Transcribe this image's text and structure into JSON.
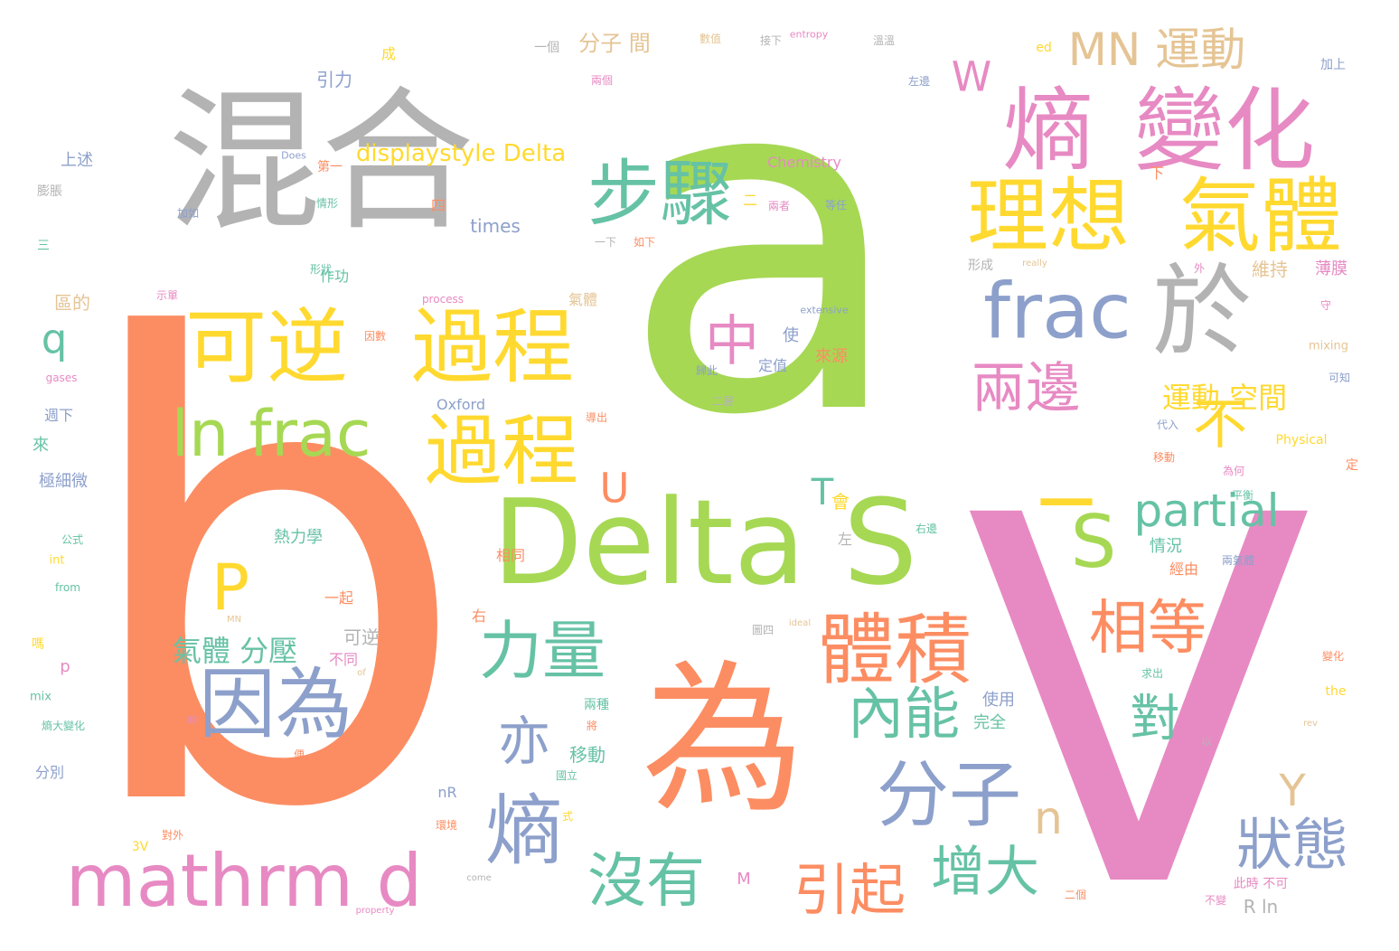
{
  "palette": {
    "green": "#a6d854",
    "orange": "#fc8d62",
    "pink": "#e78ac3",
    "gray": "#b3b3b3",
    "yellow": "#ffd92f",
    "blue": "#8da0cb",
    "teal": "#66c2a5",
    "tan": "#e5c494"
  },
  "words": [
    {
      "text": "a",
      "color": "green"
    },
    {
      "text": "b",
      "color": "orange"
    },
    {
      "text": "V",
      "color": "pink"
    },
    {
      "text": "混合",
      "color": "gray"
    },
    {
      "text": "為",
      "color": "orange"
    },
    {
      "text": "Delta S",
      "color": "green"
    },
    {
      "text": "熵",
      "color": "pink"
    },
    {
      "text": "變化",
      "color": "pink"
    },
    {
      "text": "理想",
      "color": "yellow"
    },
    {
      "text": "氣體",
      "color": "yellow"
    },
    {
      "text": "於",
      "color": "gray"
    },
    {
      "text": "frac",
      "color": "blue"
    },
    {
      "text": "可逆",
      "color": "yellow"
    },
    {
      "text": "過程",
      "color": "yellow"
    },
    {
      "text": "過程",
      "color": "yellow"
    },
    {
      "text": "步驟",
      "color": "teal"
    },
    {
      "text": "ln frac",
      "color": "green"
    },
    {
      "text": "mathrm d",
      "color": "pink"
    },
    {
      "text": "因為",
      "color": "blue"
    },
    {
      "text": "熵",
      "color": "blue"
    },
    {
      "text": "分子",
      "color": "blue"
    },
    {
      "text": "體積",
      "color": "orange"
    },
    {
      "text": "力量",
      "color": "teal"
    },
    {
      "text": "S",
      "color": "green"
    },
    {
      "text": "MN 運動",
      "color": "tan"
    },
    {
      "text": "兩邊",
      "color": "pink"
    },
    {
      "text": "_",
      "color": "yellow"
    },
    {
      "text": "不",
      "color": "yellow"
    },
    {
      "text": "partial",
      "color": "teal"
    },
    {
      "text": "相等",
      "color": "orange"
    },
    {
      "text": "內能",
      "color": "teal"
    },
    {
      "text": "沒有",
      "color": "teal"
    },
    {
      "text": "增大",
      "color": "teal"
    },
    {
      "text": "引起",
      "color": "orange"
    },
    {
      "text": "狀態",
      "color": "blue"
    },
    {
      "text": "對",
      "color": "teal"
    },
    {
      "text": "亦",
      "color": "blue"
    },
    {
      "text": "P",
      "color": "yellow"
    },
    {
      "text": "中",
      "color": "pink"
    },
    {
      "text": "q",
      "color": "teal"
    },
    {
      "text": "W",
      "color": "pink"
    },
    {
      "text": "U",
      "color": "orange"
    },
    {
      "text": "T",
      "color": "teal"
    },
    {
      "text": "n",
      "color": "tan"
    },
    {
      "text": "Y",
      "color": "tan"
    },
    {
      "text": "氣體 分壓",
      "color": "teal"
    },
    {
      "text": "運動 空間",
      "color": "yellow"
    },
    {
      "text": "displaystyle Delta",
      "color": "yellow"
    },
    {
      "text": "times",
      "color": "blue"
    },
    {
      "text": "分子 間",
      "color": "tan"
    },
    {
      "text": "Chemistry",
      "color": "pink"
    },
    {
      "text": "引力",
      "color": "blue"
    },
    {
      "text": "上述",
      "color": "blue"
    },
    {
      "text": "膨脹",
      "color": "gray"
    },
    {
      "text": "情況",
      "color": "teal"
    },
    {
      "text": "維持",
      "color": "tan"
    },
    {
      "text": "薄膜",
      "color": "pink"
    },
    {
      "text": "移動",
      "color": "teal"
    },
    {
      "text": "熱力學",
      "color": "teal"
    },
    {
      "text": "可逆",
      "color": "gray"
    },
    {
      "text": "一起",
      "color": "orange"
    },
    {
      "text": "R ln",
      "color": "gray"
    },
    {
      "text": "使用",
      "color": "blue"
    },
    {
      "text": "完全",
      "color": "teal"
    },
    {
      "text": "來源",
      "color": "orange"
    },
    {
      "text": "定值",
      "color": "blue"
    },
    {
      "text": "使",
      "color": "blue"
    },
    {
      "text": "氣體",
      "color": "tan"
    },
    {
      "text": "區的",
      "color": "tan"
    },
    {
      "text": "作功",
      "color": "teal"
    },
    {
      "text": "極細微",
      "color": "blue"
    },
    {
      "text": "來",
      "color": "teal"
    },
    {
      "text": "分別",
      "color": "blue"
    },
    {
      "text": "熵大變化",
      "color": "teal"
    },
    {
      "text": "Oxford",
      "color": "blue"
    },
    {
      "text": "形成",
      "color": "gray"
    },
    {
      "text": "mixing",
      "color": "tan"
    },
    {
      "text": "Physical",
      "color": "yellow"
    },
    {
      "text": "相同",
      "color": "orange"
    },
    {
      "text": "經由",
      "color": "orange"
    },
    {
      "text": "兩氣體",
      "color": "blue"
    },
    {
      "text": "不同",
      "color": "pink"
    },
    {
      "text": "兩種",
      "color": "teal"
    },
    {
      "text": "nR",
      "color": "blue"
    },
    {
      "text": "M",
      "color": "pink"
    },
    {
      "text": "3V",
      "color": "yellow"
    },
    {
      "text": "mix",
      "color": "teal"
    },
    {
      "text": "p",
      "color": "pink"
    },
    {
      "text": "the",
      "color": "yellow"
    },
    {
      "text": "int",
      "color": "yellow"
    },
    {
      "text": "from",
      "color": "teal"
    },
    {
      "text": "公式",
      "color": "teal"
    },
    {
      "text": "gases",
      "color": "pink"
    },
    {
      "text": "extensive",
      "color": "blue"
    },
    {
      "text": "process",
      "color": "pink"
    },
    {
      "text": "entropy",
      "color": "pink"
    },
    {
      "text": "Does",
      "color": "blue"
    },
    {
      "text": "ed",
      "color": "yellow"
    },
    {
      "text": "really",
      "color": "tan"
    },
    {
      "text": "ideal",
      "color": "tan"
    },
    {
      "text": "come",
      "color": "gray"
    },
    {
      "text": "property",
      "color": "pink"
    },
    {
      "text": "of",
      "color": "tan"
    },
    {
      "text": "rev",
      "color": "tan"
    },
    {
      "text": "MN",
      "color": "tan"
    },
    {
      "text": "一個",
      "color": "gray"
    },
    {
      "text": "成",
      "color": "yellow"
    },
    {
      "text": "第一",
      "color": "orange"
    },
    {
      "text": "四",
      "color": "orange"
    },
    {
      "text": "二",
      "color": "yellow"
    },
    {
      "text": "下",
      "color": "orange"
    },
    {
      "text": "加上",
      "color": "blue"
    },
    {
      "text": "左",
      "color": "gray"
    },
    {
      "text": "右",
      "color": "orange"
    },
    {
      "text": "週下",
      "color": "blue"
    },
    {
      "text": "三",
      "color": "teal"
    },
    {
      "text": "可知",
      "color": "blue"
    },
    {
      "text": "代入",
      "color": "blue"
    },
    {
      "text": "平衡",
      "color": "teal"
    },
    {
      "text": "不變",
      "color": "pink"
    },
    {
      "text": "此時 不可",
      "color": "pink"
    },
    {
      "text": "變化",
      "color": "orange"
    },
    {
      "text": "求出",
      "color": "teal"
    },
    {
      "text": "二個",
      "color": "orange"
    },
    {
      "text": "為何",
      "color": "pink"
    },
    {
      "text": "移動",
      "color": "orange"
    },
    {
      "text": "圖四",
      "color": "gray"
    },
    {
      "text": "環境",
      "color": "orange"
    },
    {
      "text": "國立",
      "color": "teal"
    },
    {
      "text": "對外",
      "color": "orange"
    },
    {
      "text": "因數",
      "color": "orange"
    },
    {
      "text": "情形",
      "color": "teal"
    },
    {
      "text": "加如",
      "color": "blue"
    },
    {
      "text": "一下",
      "color": "gray"
    },
    {
      "text": "如下",
      "color": "orange"
    },
    {
      "text": "等任",
      "color": "blue"
    },
    {
      "text": "兩者",
      "color": "pink"
    },
    {
      "text": "數值",
      "color": "tan"
    },
    {
      "text": "接下",
      "color": "gray"
    },
    {
      "text": "溫溫",
      "color": "gray"
    },
    {
      "text": "兩個",
      "color": "pink"
    },
    {
      "text": "左邊",
      "color": "blue"
    },
    {
      "text": "右邊",
      "color": "teal"
    },
    {
      "text": "形狀",
      "color": "teal"
    },
    {
      "text": "定",
      "color": "orange"
    },
    {
      "text": "守",
      "color": "pink"
    },
    {
      "text": "外",
      "color": "pink"
    },
    {
      "text": "將",
      "color": "orange"
    },
    {
      "text": "會",
      "color": "yellow"
    },
    {
      "text": "二層",
      "color": "gray"
    },
    {
      "text": "歸此",
      "color": "blue"
    },
    {
      "text": "示單",
      "color": "pink"
    },
    {
      "text": "導出",
      "color": "orange"
    },
    {
      "text": "時",
      "color": "pink"
    },
    {
      "text": "嗎",
      "color": "yellow"
    },
    {
      "text": "便",
      "color": "orange"
    },
    {
      "text": "式",
      "color": "yellow"
    },
    {
      "text": "以",
      "color": "gray"
    }
  ]
}
